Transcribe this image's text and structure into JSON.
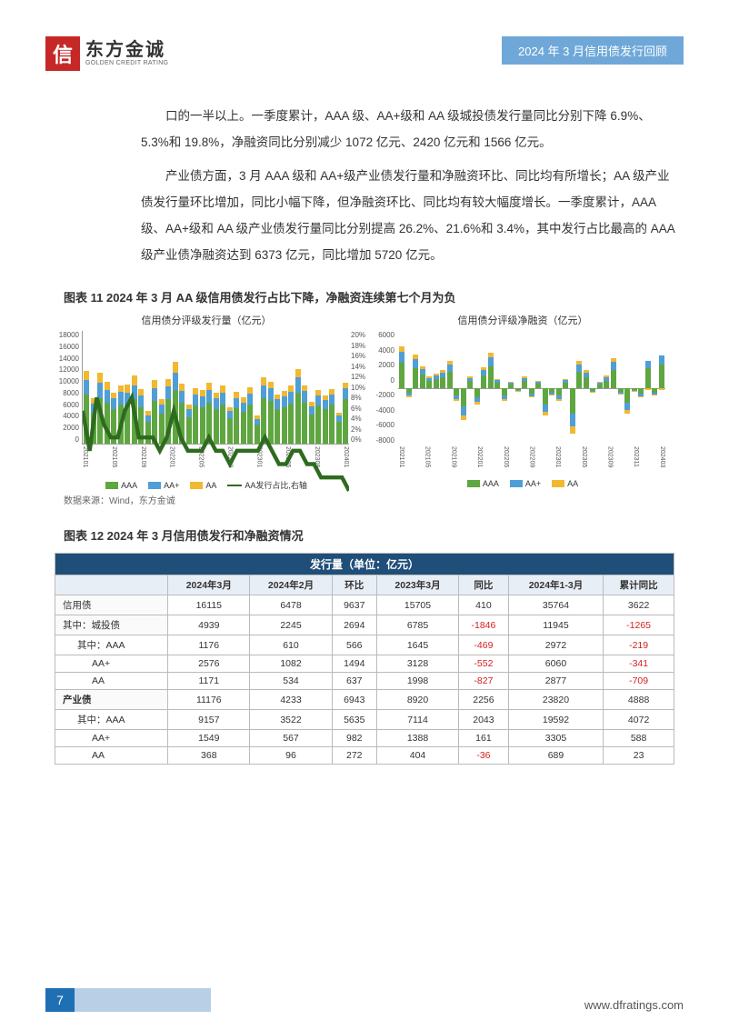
{
  "header": {
    "logo_cn": "东方金诚",
    "logo_en": "GOLDEN CREDIT RATING",
    "logo_char": "信",
    "right_title": "2024 年 3 月信用债发行回顾"
  },
  "body": {
    "p1": "口的一半以上。一季度累计，AAA 级、AA+级和 AA 级城投债发行量同比分别下降 6.9%、5.3%和 19.8%，净融资同比分别减少 1072 亿元、2420 亿元和 1566 亿元。",
    "p2": "产业债方面，3 月 AAA 级和 AA+级产业债发行量和净融资环比、同比均有所增长；AA 级产业债发行量环比增加，同比小幅下降，但净融资环比、同比均有较大幅度增长。一季度累计，AAA 级、AA+级和 AA 级产业债发行量同比分别提高 26.2%、21.6%和 3.4%，其中发行占比最高的 AAA 级产业债净融资达到 6373 亿元，同比增加 5720 亿元。"
  },
  "fig11": {
    "title": "图表 11  2024 年 3 月 AA 级信用债发行占比下降，净融资连续第七个月为负",
    "left": {
      "title": "信用债分评级发行量（亿元）",
      "ylabels": [
        "18000",
        "16000",
        "14000",
        "12000",
        "10000",
        "8000",
        "6000",
        "4000",
        "2000",
        "0"
      ],
      "ylabels_r": [
        "20%",
        "18%",
        "16%",
        "14%",
        "12%",
        "10%",
        "8%",
        "6%",
        "4%",
        "2%",
        "0%"
      ],
      "series_colors": {
        "aaa": "#5fa641",
        "aap": "#4f9fd6",
        "aa": "#f2b830",
        "line": "#2e6b1f"
      },
      "legend": [
        "AAA",
        "AA+",
        "AA",
        "AA发行占比,右轴"
      ]
    },
    "right": {
      "title": "信用债分评级净融资（亿元）",
      "ylabels": [
        "6000",
        "4000",
        "2000",
        "0",
        "-2000",
        "-4000",
        "-6000",
        "-8000"
      ],
      "series_colors": {
        "aaa": "#5fa641",
        "aap": "#4f9fd6",
        "aa": "#f2b830"
      },
      "legend": [
        "AAA",
        "AA+",
        "AA"
      ]
    },
    "xlabels": [
      "202101",
      "202105",
      "202109",
      "202201",
      "202205",
      "202209",
      "202301",
      "202305",
      "202309",
      "202401"
    ],
    "xlabels_r": [
      "202101",
      "202105",
      "202109",
      "202201",
      "202205",
      "202209",
      "202301",
      "202305",
      "202309",
      "202311",
      "202403"
    ],
    "source": "数据来源：Wind，东方金诚"
  },
  "fig12": {
    "title": "图表 12  2024 年 3 月信用债发行和净融资情况",
    "band_title": "发行量（单位：亿元）",
    "cols": [
      "",
      "2024年3月",
      "2024年2月",
      "环比",
      "2023年3月",
      "同比",
      "2024年1-3月",
      "累计同比"
    ],
    "rows": [
      {
        "label": "信用债",
        "indent": 0,
        "vals": [
          "16115",
          "6478",
          "9637",
          "15705",
          "410",
          "35764",
          "3622"
        ],
        "neg": []
      },
      {
        "label": "其中：城投债",
        "indent": 0,
        "vals": [
          "4939",
          "2245",
          "2694",
          "6785",
          "-1846",
          "11945",
          "-1265"
        ],
        "neg": [
          4,
          6
        ]
      },
      {
        "label": "其中：AAA",
        "indent": 1,
        "vals": [
          "1176",
          "610",
          "566",
          "1645",
          "-469",
          "2972",
          "-219"
        ],
        "neg": [
          4,
          6
        ]
      },
      {
        "label": "AA+",
        "indent": 2,
        "vals": [
          "2576",
          "1082",
          "1494",
          "3128",
          "-552",
          "6060",
          "-341"
        ],
        "neg": [
          4,
          6
        ]
      },
      {
        "label": "AA",
        "indent": 2,
        "vals": [
          "1171",
          "534",
          "637",
          "1998",
          "-827",
          "2877",
          "-709"
        ],
        "neg": [
          4,
          6
        ]
      },
      {
        "label": "产业债",
        "indent": 0,
        "bold": true,
        "vals": [
          "11176",
          "4233",
          "6943",
          "8920",
          "2256",
          "23820",
          "4888"
        ],
        "neg": []
      },
      {
        "label": "其中：AAA",
        "indent": 1,
        "vals": [
          "9157",
          "3522",
          "5635",
          "7114",
          "2043",
          "19592",
          "4072"
        ],
        "neg": []
      },
      {
        "label": "AA+",
        "indent": 2,
        "vals": [
          "1549",
          "567",
          "982",
          "1388",
          "161",
          "3305",
          "588"
        ],
        "neg": []
      },
      {
        "label": "AA",
        "indent": 2,
        "vals": [
          "368",
          "96",
          "272",
          "404",
          "-36",
          "689",
          "23"
        ],
        "neg": [
          4
        ]
      }
    ]
  },
  "chart_left_bars": [
    {
      "aaa": 78,
      "aap": 22,
      "aa": 14,
      "line": 14
    },
    {
      "aaa": 48,
      "aap": 15,
      "aa": 8,
      "line": 11
    },
    {
      "aaa": 72,
      "aap": 24,
      "aa": 16,
      "line": 15
    },
    {
      "aaa": 65,
      "aap": 20,
      "aa": 12,
      "line": 13
    },
    {
      "aaa": 55,
      "aap": 16,
      "aa": 9,
      "line": 12
    },
    {
      "aaa": 62,
      "aap": 19,
      "aa": 11,
      "line": 12
    },
    {
      "aaa": 60,
      "aap": 20,
      "aa": 13,
      "line": 14
    },
    {
      "aaa": 70,
      "aap": 22,
      "aa": 15,
      "line": 15
    },
    {
      "aaa": 58,
      "aap": 18,
      "aa": 10,
      "line": 12
    },
    {
      "aaa": 35,
      "aap": 10,
      "aa": 6,
      "line": 12
    },
    {
      "aaa": 68,
      "aap": 20,
      "aa": 12,
      "line": 12
    },
    {
      "aaa": 48,
      "aap": 14,
      "aa": 8,
      "line": 11
    },
    {
      "aaa": 70,
      "aap": 20,
      "aa": 12,
      "line": 12
    },
    {
      "aaa": 85,
      "aap": 26,
      "aa": 18,
      "line": 14
    },
    {
      "aaa": 65,
      "aap": 18,
      "aa": 11,
      "line": 12
    },
    {
      "aaa": 42,
      "aap": 12,
      "aa": 7,
      "line": 11
    },
    {
      "aaa": 60,
      "aap": 18,
      "aa": 10,
      "line": 11
    },
    {
      "aaa": 58,
      "aap": 17,
      "aa": 10,
      "line": 11
    },
    {
      "aaa": 65,
      "aap": 19,
      "aa": 12,
      "line": 12
    },
    {
      "aaa": 55,
      "aap": 16,
      "aa": 9,
      "line": 11
    },
    {
      "aaa": 62,
      "aap": 18,
      "aa": 11,
      "line": 11
    },
    {
      "aaa": 40,
      "aap": 12,
      "aa": 6,
      "line": 10
    },
    {
      "aaa": 56,
      "aap": 16,
      "aa": 9,
      "line": 11
    },
    {
      "aaa": 50,
      "aap": 15,
      "aa": 8,
      "line": 11
    },
    {
      "aaa": 62,
      "aap": 17,
      "aa": 10,
      "line": 11
    },
    {
      "aaa": 30,
      "aap": 9,
      "aa": 5,
      "line": 11
    },
    {
      "aaa": 72,
      "aap": 20,
      "aa": 12,
      "line": 12
    },
    {
      "aaa": 68,
      "aap": 19,
      "aa": 11,
      "line": 11
    },
    {
      "aaa": 55,
      "aap": 15,
      "aa": 8,
      "line": 10
    },
    {
      "aaa": 58,
      "aap": 16,
      "aa": 9,
      "line": 10
    },
    {
      "aaa": 63,
      "aap": 18,
      "aa": 10,
      "line": 11
    },
    {
      "aaa": 80,
      "aap": 24,
      "aa": 13,
      "line": 11
    },
    {
      "aaa": 65,
      "aap": 18,
      "aa": 9,
      "line": 10
    },
    {
      "aaa": 46,
      "aap": 13,
      "aa": 7,
      "line": 10
    },
    {
      "aaa": 60,
      "aap": 16,
      "aa": 8,
      "line": 9
    },
    {
      "aaa": 55,
      "aap": 14,
      "aa": 7,
      "line": 9
    },
    {
      "aaa": 62,
      "aap": 16,
      "aa": 8,
      "line": 9
    },
    {
      "aaa": 34,
      "aap": 10,
      "aa": 5,
      "line": 9
    },
    {
      "aaa": 70,
      "aap": 18,
      "aa": 8,
      "line": 8
    }
  ],
  "chart_right_bars": [
    {
      "aaa": 28,
      "aap": 12,
      "aa": 6
    },
    {
      "aaa": -5,
      "aap": -3,
      "aa": -2
    },
    {
      "aaa": 22,
      "aap": 10,
      "aa": 5
    },
    {
      "aaa": 15,
      "aap": 6,
      "aa": 3
    },
    {
      "aaa": 8,
      "aap": 3,
      "aa": 2
    },
    {
      "aaa": 10,
      "aap": 4,
      "aa": 2
    },
    {
      "aaa": 12,
      "aap": 5,
      "aa": 3
    },
    {
      "aaa": 18,
      "aap": 8,
      "aa": 4
    },
    {
      "aaa": -8,
      "aap": -4,
      "aa": -2
    },
    {
      "aaa": -20,
      "aap": -10,
      "aa": -5
    },
    {
      "aaa": 8,
      "aap": 3,
      "aa": 2
    },
    {
      "aaa": -10,
      "aap": -5,
      "aa": -3
    },
    {
      "aaa": 14,
      "aap": 6,
      "aa": 3
    },
    {
      "aaa": 24,
      "aap": 10,
      "aa": 5
    },
    {
      "aaa": 6,
      "aap": 3,
      "aa": 1
    },
    {
      "aaa": -8,
      "aap": -4,
      "aa": -2
    },
    {
      "aaa": 4,
      "aap": 2,
      "aa": 1
    },
    {
      "aaa": -2,
      "aap": -1,
      "aa": -1
    },
    {
      "aaa": 8,
      "aap": 3,
      "aa": 2
    },
    {
      "aaa": -6,
      "aap": -3,
      "aa": -1
    },
    {
      "aaa": 5,
      "aap": 2,
      "aa": 1
    },
    {
      "aaa": -18,
      "aap": -8,
      "aa": -4
    },
    {
      "aaa": -5,
      "aap": -2,
      "aa": -1
    },
    {
      "aaa": -8,
      "aap": -4,
      "aa": -2
    },
    {
      "aaa": 6,
      "aap": 3,
      "aa": 1
    },
    {
      "aaa": -28,
      "aap": -14,
      "aa": -8
    },
    {
      "aaa": 18,
      "aap": 8,
      "aa": 4
    },
    {
      "aaa": 12,
      "aap": 5,
      "aa": 3
    },
    {
      "aaa": -3,
      "aap": -1,
      "aa": -1
    },
    {
      "aaa": 4,
      "aap": 2,
      "aa": 1
    },
    {
      "aaa": 8,
      "aap": 4,
      "aa": 2
    },
    {
      "aaa": 20,
      "aap": 9,
      "aa": 4
    },
    {
      "aaa": -4,
      "aap": -2,
      "aa": -1
    },
    {
      "aaa": -16,
      "aap": -8,
      "aa": -4
    },
    {
      "aaa": -2,
      "aap": -1,
      "aa": -1
    },
    {
      "aaa": -6,
      "aap": -3,
      "aa": -1
    },
    {
      "aaa": 22,
      "aap": 8,
      "aa": -2
    },
    {
      "aaa": -5,
      "aap": -2,
      "aa": -1
    },
    {
      "aaa": 26,
      "aap": 10,
      "aa": -2
    }
  ],
  "footer": {
    "page": "7",
    "url": "www.dfratings.com"
  }
}
